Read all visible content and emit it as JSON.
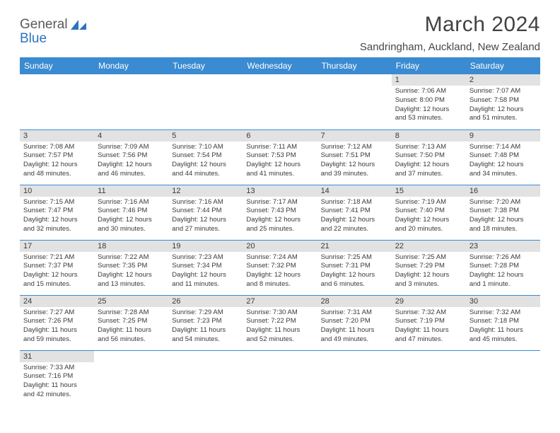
{
  "logo": {
    "part1": "General",
    "part2": "Blue"
  },
  "title": "March 2024",
  "location": "Sandringham, Auckland, New Zealand",
  "colors": {
    "header_bg": "#3a8bd1",
    "header_text": "#ffffff",
    "daybar_bg": "#e2e2e2",
    "row_border": "#3a8bd1",
    "title_color": "#424242",
    "brand_blue": "#2b74c0",
    "brand_gray": "#5a5a5a"
  },
  "weekdays": [
    "Sunday",
    "Monday",
    "Tuesday",
    "Wednesday",
    "Thursday",
    "Friday",
    "Saturday"
  ],
  "weeks": [
    [
      null,
      null,
      null,
      null,
      null,
      {
        "n": "1",
        "sr": "Sunrise: 7:06 AM",
        "ss": "Sunset: 8:00 PM",
        "dl1": "Daylight: 12 hours",
        "dl2": "and 53 minutes."
      },
      {
        "n": "2",
        "sr": "Sunrise: 7:07 AM",
        "ss": "Sunset: 7:58 PM",
        "dl1": "Daylight: 12 hours",
        "dl2": "and 51 minutes."
      }
    ],
    [
      {
        "n": "3",
        "sr": "Sunrise: 7:08 AM",
        "ss": "Sunset: 7:57 PM",
        "dl1": "Daylight: 12 hours",
        "dl2": "and 48 minutes."
      },
      {
        "n": "4",
        "sr": "Sunrise: 7:09 AM",
        "ss": "Sunset: 7:56 PM",
        "dl1": "Daylight: 12 hours",
        "dl2": "and 46 minutes."
      },
      {
        "n": "5",
        "sr": "Sunrise: 7:10 AM",
        "ss": "Sunset: 7:54 PM",
        "dl1": "Daylight: 12 hours",
        "dl2": "and 44 minutes."
      },
      {
        "n": "6",
        "sr": "Sunrise: 7:11 AM",
        "ss": "Sunset: 7:53 PM",
        "dl1": "Daylight: 12 hours",
        "dl2": "and 41 minutes."
      },
      {
        "n": "7",
        "sr": "Sunrise: 7:12 AM",
        "ss": "Sunset: 7:51 PM",
        "dl1": "Daylight: 12 hours",
        "dl2": "and 39 minutes."
      },
      {
        "n": "8",
        "sr": "Sunrise: 7:13 AM",
        "ss": "Sunset: 7:50 PM",
        "dl1": "Daylight: 12 hours",
        "dl2": "and 37 minutes."
      },
      {
        "n": "9",
        "sr": "Sunrise: 7:14 AM",
        "ss": "Sunset: 7:48 PM",
        "dl1": "Daylight: 12 hours",
        "dl2": "and 34 minutes."
      }
    ],
    [
      {
        "n": "10",
        "sr": "Sunrise: 7:15 AM",
        "ss": "Sunset: 7:47 PM",
        "dl1": "Daylight: 12 hours",
        "dl2": "and 32 minutes."
      },
      {
        "n": "11",
        "sr": "Sunrise: 7:16 AM",
        "ss": "Sunset: 7:46 PM",
        "dl1": "Daylight: 12 hours",
        "dl2": "and 30 minutes."
      },
      {
        "n": "12",
        "sr": "Sunrise: 7:16 AM",
        "ss": "Sunset: 7:44 PM",
        "dl1": "Daylight: 12 hours",
        "dl2": "and 27 minutes."
      },
      {
        "n": "13",
        "sr": "Sunrise: 7:17 AM",
        "ss": "Sunset: 7:43 PM",
        "dl1": "Daylight: 12 hours",
        "dl2": "and 25 minutes."
      },
      {
        "n": "14",
        "sr": "Sunrise: 7:18 AM",
        "ss": "Sunset: 7:41 PM",
        "dl1": "Daylight: 12 hours",
        "dl2": "and 22 minutes."
      },
      {
        "n": "15",
        "sr": "Sunrise: 7:19 AM",
        "ss": "Sunset: 7:40 PM",
        "dl1": "Daylight: 12 hours",
        "dl2": "and 20 minutes."
      },
      {
        "n": "16",
        "sr": "Sunrise: 7:20 AM",
        "ss": "Sunset: 7:38 PM",
        "dl1": "Daylight: 12 hours",
        "dl2": "and 18 minutes."
      }
    ],
    [
      {
        "n": "17",
        "sr": "Sunrise: 7:21 AM",
        "ss": "Sunset: 7:37 PM",
        "dl1": "Daylight: 12 hours",
        "dl2": "and 15 minutes."
      },
      {
        "n": "18",
        "sr": "Sunrise: 7:22 AM",
        "ss": "Sunset: 7:35 PM",
        "dl1": "Daylight: 12 hours",
        "dl2": "and 13 minutes."
      },
      {
        "n": "19",
        "sr": "Sunrise: 7:23 AM",
        "ss": "Sunset: 7:34 PM",
        "dl1": "Daylight: 12 hours",
        "dl2": "and 11 minutes."
      },
      {
        "n": "20",
        "sr": "Sunrise: 7:24 AM",
        "ss": "Sunset: 7:32 PM",
        "dl1": "Daylight: 12 hours",
        "dl2": "and 8 minutes."
      },
      {
        "n": "21",
        "sr": "Sunrise: 7:25 AM",
        "ss": "Sunset: 7:31 PM",
        "dl1": "Daylight: 12 hours",
        "dl2": "and 6 minutes."
      },
      {
        "n": "22",
        "sr": "Sunrise: 7:25 AM",
        "ss": "Sunset: 7:29 PM",
        "dl1": "Daylight: 12 hours",
        "dl2": "and 3 minutes."
      },
      {
        "n": "23",
        "sr": "Sunrise: 7:26 AM",
        "ss": "Sunset: 7:28 PM",
        "dl1": "Daylight: 12 hours",
        "dl2": "and 1 minute."
      }
    ],
    [
      {
        "n": "24",
        "sr": "Sunrise: 7:27 AM",
        "ss": "Sunset: 7:26 PM",
        "dl1": "Daylight: 11 hours",
        "dl2": "and 59 minutes."
      },
      {
        "n": "25",
        "sr": "Sunrise: 7:28 AM",
        "ss": "Sunset: 7:25 PM",
        "dl1": "Daylight: 11 hours",
        "dl2": "and 56 minutes."
      },
      {
        "n": "26",
        "sr": "Sunrise: 7:29 AM",
        "ss": "Sunset: 7:23 PM",
        "dl1": "Daylight: 11 hours",
        "dl2": "and 54 minutes."
      },
      {
        "n": "27",
        "sr": "Sunrise: 7:30 AM",
        "ss": "Sunset: 7:22 PM",
        "dl1": "Daylight: 11 hours",
        "dl2": "and 52 minutes."
      },
      {
        "n": "28",
        "sr": "Sunrise: 7:31 AM",
        "ss": "Sunset: 7:20 PM",
        "dl1": "Daylight: 11 hours",
        "dl2": "and 49 minutes."
      },
      {
        "n": "29",
        "sr": "Sunrise: 7:32 AM",
        "ss": "Sunset: 7:19 PM",
        "dl1": "Daylight: 11 hours",
        "dl2": "and 47 minutes."
      },
      {
        "n": "30",
        "sr": "Sunrise: 7:32 AM",
        "ss": "Sunset: 7:18 PM",
        "dl1": "Daylight: 11 hours",
        "dl2": "and 45 minutes."
      }
    ],
    [
      {
        "n": "31",
        "sr": "Sunrise: 7:33 AM",
        "ss": "Sunset: 7:16 PM",
        "dl1": "Daylight: 11 hours",
        "dl2": "and 42 minutes."
      },
      null,
      null,
      null,
      null,
      null,
      null
    ]
  ]
}
